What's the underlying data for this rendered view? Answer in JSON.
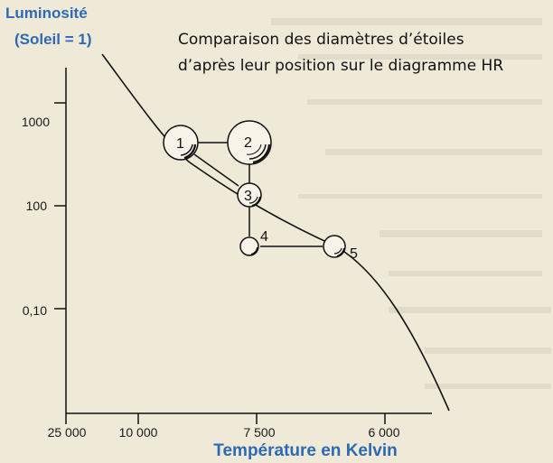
{
  "chart_data": {
    "type": "scatter",
    "title_lines": [
      "Comparaison des diamètres d’étoiles",
      "d’après leur position sur le diagramme HR"
    ],
    "ylabel_lines": [
      "Luminosité",
      "(Soleil = 1)"
    ],
    "xlabel": "Température en Kelvin",
    "x_tick_labels": [
      "25 000",
      "10 000",
      "7 500",
      "6 000"
    ],
    "y_tick_labels": [
      "1000",
      "100",
      "0,10"
    ],
    "grid": false,
    "stars": [
      {
        "label": "1",
        "temperature": 8700,
        "luminosity": 1000,
        "relative_diameter": 2
      },
      {
        "label": "2",
        "temperature": 7500,
        "luminosity": 1000,
        "relative_diameter": 3
      },
      {
        "label": "3",
        "temperature": 7500,
        "luminosity": 100,
        "relative_diameter": 1.4
      },
      {
        "label": "4",
        "temperature": 7500,
        "luminosity": 10,
        "relative_diameter": 1
      },
      {
        "label": "5",
        "temperature": 6500,
        "luminosity": 10,
        "relative_diameter": 1.2
      }
    ]
  },
  "colors": {
    "axis_label": "#2e6ab3",
    "ink": "#111111",
    "paper": "#efe9d8"
  }
}
